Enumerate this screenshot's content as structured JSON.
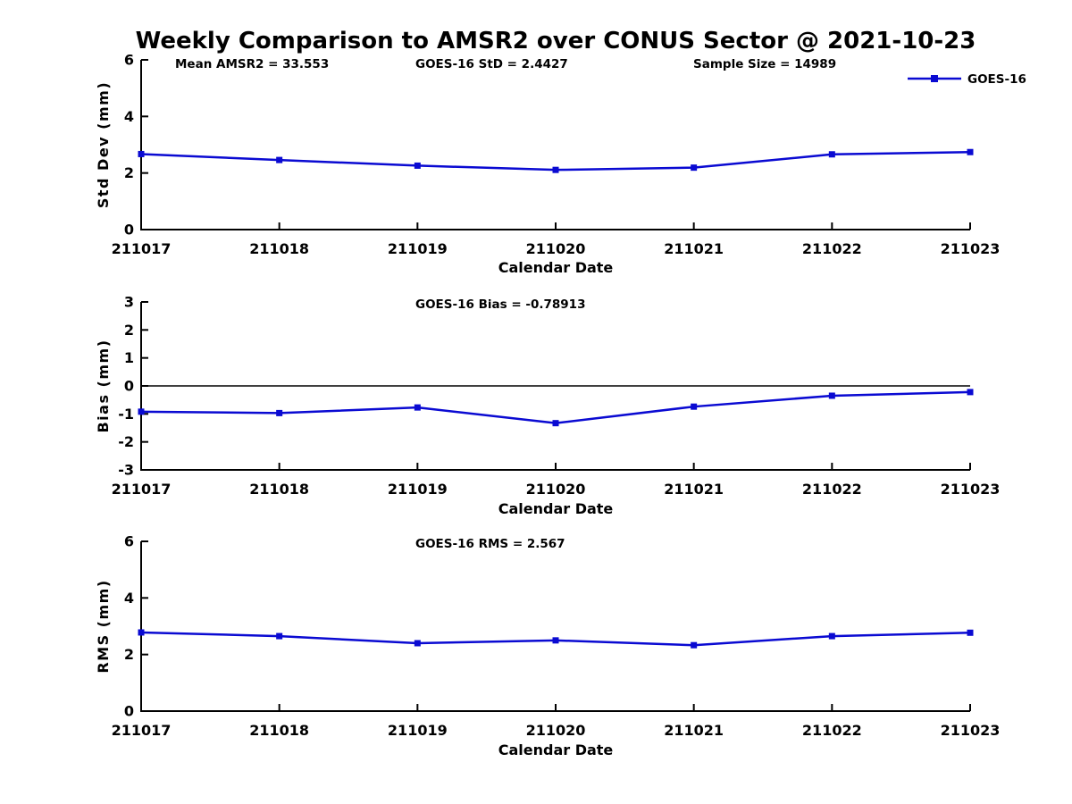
{
  "page": {
    "title": "Weekly Comparison to AMSR2 over CONUS Sector @ 2021-10-23",
    "background": "#ffffff"
  },
  "colors": {
    "series": "#0a0ad2",
    "axis": "#000000",
    "zero_line": "#000000",
    "text": "#000000"
  },
  "legend": {
    "label": "GOES-16",
    "position": "top-right"
  },
  "chart_data": [
    {
      "type": "line",
      "panel": "std-dev",
      "annotations": [
        "Mean AMSR2 = 33.553",
        "GOES-16 StD = 2.4427",
        "Sample Size = 14989"
      ],
      "categories": [
        "211017",
        "211018",
        "211019",
        "211020",
        "211021",
        "211022",
        "211023"
      ],
      "series": [
        {
          "name": "GOES-16",
          "values": [
            2.67,
            2.46,
            2.26,
            2.11,
            2.19,
            2.66,
            2.74
          ]
        }
      ],
      "xlabel": "Calendar Date",
      "ylabel": "Std Dev (mm)",
      "ylim": [
        0,
        6
      ],
      "yticks": [
        0,
        2,
        4,
        6
      ],
      "grid": false,
      "zero_line": false,
      "legend_visible": true
    },
    {
      "type": "line",
      "panel": "bias",
      "annotations": [
        "GOES-16 Bias  = -0.78913"
      ],
      "categories": [
        "211017",
        "211018",
        "211019",
        "211020",
        "211021",
        "211022",
        "211023"
      ],
      "series": [
        {
          "name": "GOES-16",
          "values": [
            -0.92,
            -0.97,
            -0.77,
            -1.33,
            -0.74,
            -0.35,
            -0.22
          ]
        }
      ],
      "xlabel": "Calendar Date",
      "ylabel": "Bias (mm)",
      "ylim": [
        -3,
        3
      ],
      "yticks": [
        -3,
        -2,
        -1,
        0,
        1,
        2,
        3
      ],
      "grid": false,
      "zero_line": true,
      "legend_visible": false
    },
    {
      "type": "line",
      "panel": "rms",
      "annotations": [
        "GOES-16 RMS = 2.567"
      ],
      "categories": [
        "211017",
        "211018",
        "211019",
        "211020",
        "211021",
        "211022",
        "211023"
      ],
      "series": [
        {
          "name": "GOES-16",
          "values": [
            2.78,
            2.65,
            2.4,
            2.5,
            2.33,
            2.65,
            2.77
          ]
        }
      ],
      "xlabel": "Calendar Date",
      "ylabel": "RMS (mm)",
      "ylim": [
        0,
        6
      ],
      "yticks": [
        0,
        2,
        4,
        6
      ],
      "grid": false,
      "zero_line": false,
      "legend_visible": false
    }
  ]
}
